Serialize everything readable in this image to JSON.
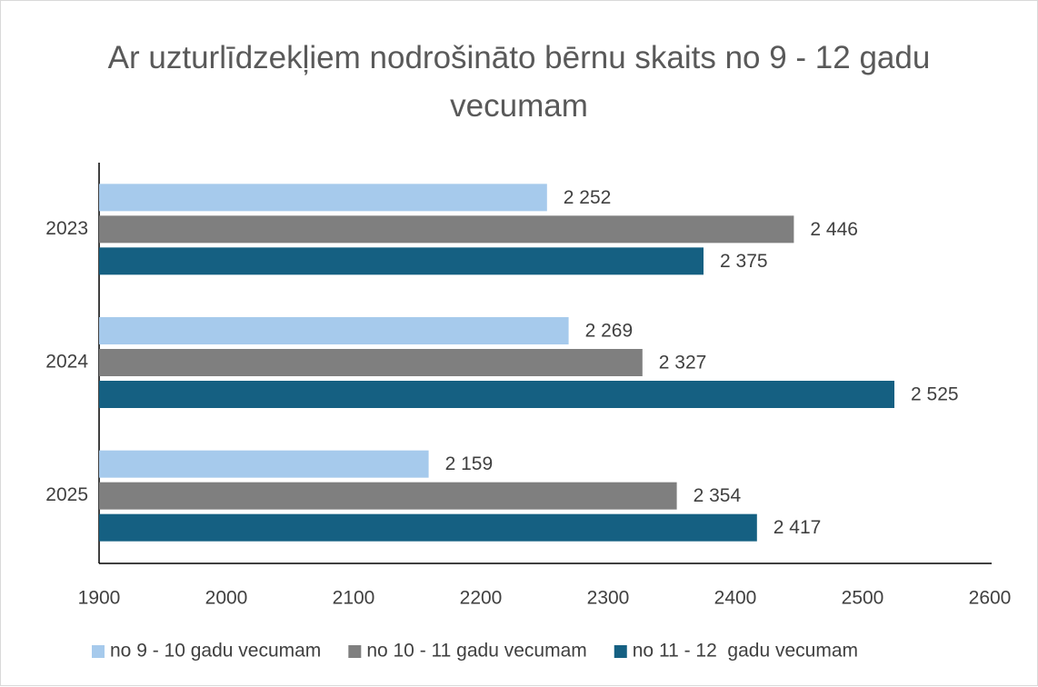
{
  "chart_data": {
    "type": "bar",
    "orientation": "horizontal",
    "title": "Ar uzturlīdzekļiem nodrošināto bērnu skaits no 9 - 12 gadu vecumam",
    "categories": [
      "2023",
      "2024",
      "2025"
    ],
    "series": [
      {
        "name": "no 9 - 10 gadu vecumam",
        "color": "#a6caec",
        "values": [
          2252,
          2269,
          2159
        ],
        "value_labels": [
          "2 252",
          "2 269",
          "2 159"
        ]
      },
      {
        "name": "no 10 - 11 gadu vecumam",
        "color": "#7f7f7f",
        "values": [
          2446,
          2327,
          2354
        ],
        "value_labels": [
          "2 446",
          "2 327",
          "2 354"
        ]
      },
      {
        "name": "no 11 - 12  gadu vecumam",
        "color": "#156082",
        "values": [
          2375,
          2525,
          2417
        ],
        "value_labels": [
          "2 375",
          "2 525",
          "2 417"
        ]
      }
    ],
    "xlim": [
      1900,
      2600
    ],
    "xticks": [
      1900,
      2000,
      2100,
      2200,
      2300,
      2400,
      2500,
      2600
    ],
    "grid": false,
    "legend": "bottom"
  }
}
